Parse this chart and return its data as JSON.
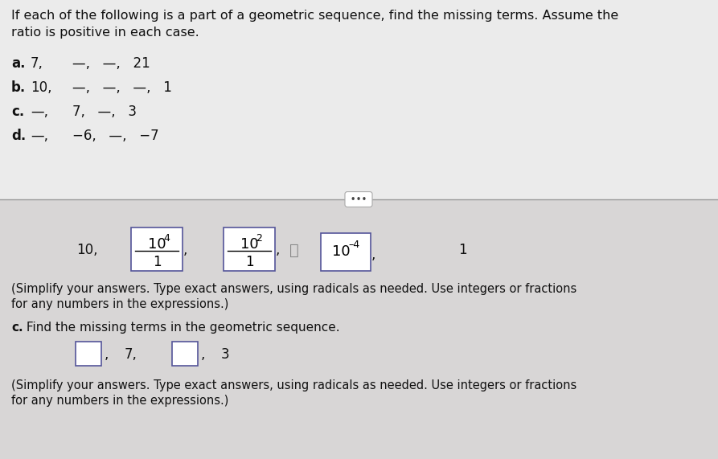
{
  "bg_color_top": "#e8e8e8",
  "bg_color_bottom": "#e0dede",
  "text_color": "#000000",
  "title_line1": "If each of the following is a part of a geometric sequence, find the missing terms. Assume the",
  "title_line2": "ratio is positive in each case.",
  "row_a": "a.  7,  —,  —,  21",
  "row_b": "b.  10,  —,  —,  —,  1",
  "row_c": "c.  —,  7,  —,  3",
  "row_d": "d.  —,  −6,  —,  −7",
  "box1_numer": "10",
  "box1_exp": "4",
  "box1_denom": "1",
  "box2_numer": "10",
  "box2_exp": "2",
  "box2_denom": "1",
  "box3_base": "10",
  "box3_exp": "−4",
  "answer_start": "10,",
  "answer_end": "1",
  "simplify1": "(Simplify your answers. Type exact answers, using radicals as needed. Use integers or fractions",
  "simplify2": "for any numbers in the expressions.)",
  "part_c_title": "c. Find the missing terms in the geometric sequence.",
  "part_c_mid": "7,",
  "part_c_end": "3",
  "simplify3": "(Simplify your answers. Type exact answers, using radicals as needed. Use integers or fractions",
  "simplify4": "for any numbers in the expressions.)"
}
